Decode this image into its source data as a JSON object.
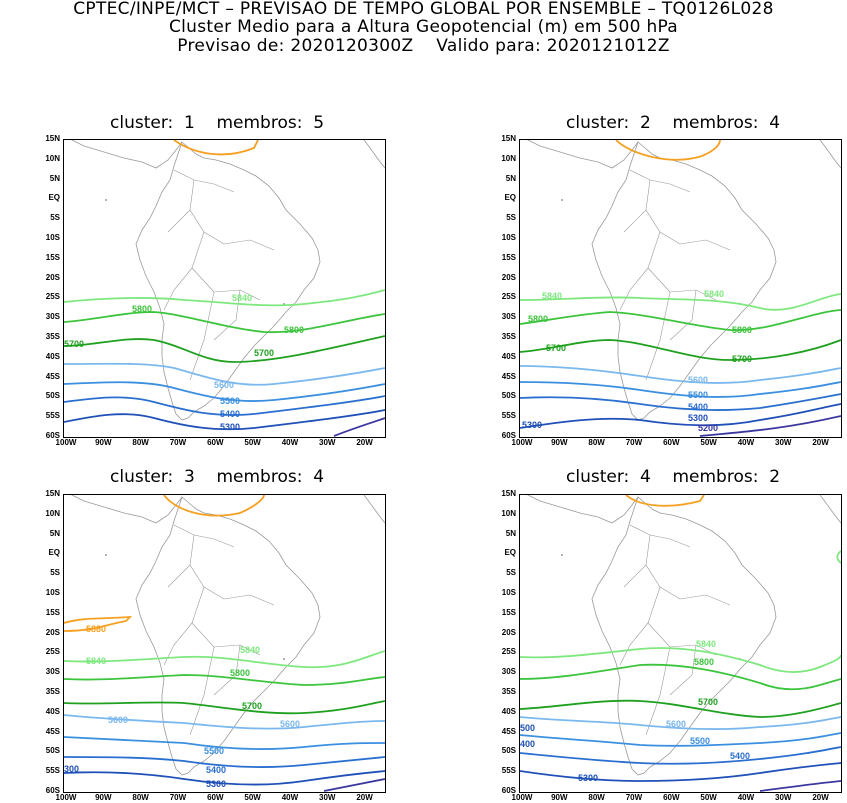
{
  "header": {
    "line1": "CPTEC/INPE/MCT – PREVISAO DE TEMPO GLOBAL POR ENSEMBLE – TQ0126L028",
    "line2": "Cluster Medio para a Altura Geopotencial (m) em 500 hPa",
    "line3": "Previsao de: 2020120300Z    Valido para: 2020121012Z"
  },
  "lat_labels": [
    "15N",
    "10N",
    "5N",
    "EQ",
    "5S",
    "10S",
    "15S",
    "20S",
    "25S",
    "30S",
    "35S",
    "40S",
    "45S",
    "50S",
    "55S",
    "60S"
  ],
  "lon_labels": [
    "100W",
    "90W",
    "80W",
    "70W",
    "60W",
    "50W",
    "40W",
    "30W",
    "20W"
  ],
  "colors": {
    "c5880": "#f5a020",
    "c5840": "#7ee87e",
    "c5800": "#3cc43c",
    "c5700": "#1fa01f",
    "c5600": "#7ab8ee",
    "c5500": "#3b8fe0",
    "c5400": "#2a6fd0",
    "c5300": "#1f50b8",
    "c5200": "#3a38a0",
    "coast": "#9a9a9a"
  },
  "panels": [
    {
      "title": "cluster:  1    membros:  5",
      "contour_labels": [
        "5840",
        "5800",
        "5800",
        "5700",
        "5700",
        "5600",
        "5500",
        "5400",
        "5300"
      ]
    },
    {
      "title": "cluster:  2    membros:  4",
      "contour_labels": [
        "5840",
        "5840",
        "5800",
        "5800",
        "5700",
        "5700",
        "5600",
        "5500",
        "5400",
        "5300",
        "5300",
        "5200"
      ]
    },
    {
      "title": "cluster:  3    membros:  4",
      "contour_labels": [
        "5880",
        "5840",
        "5840",
        "5800",
        "5700",
        "5600",
        "5600",
        "5500",
        "5400",
        "5300",
        "300"
      ]
    },
    {
      "title": "cluster:  4    membros:  2",
      "contour_labels": [
        "5840",
        "5800",
        "5700",
        "5600",
        "5500",
        "5400",
        "5300",
        "500",
        "400"
      ]
    }
  ]
}
